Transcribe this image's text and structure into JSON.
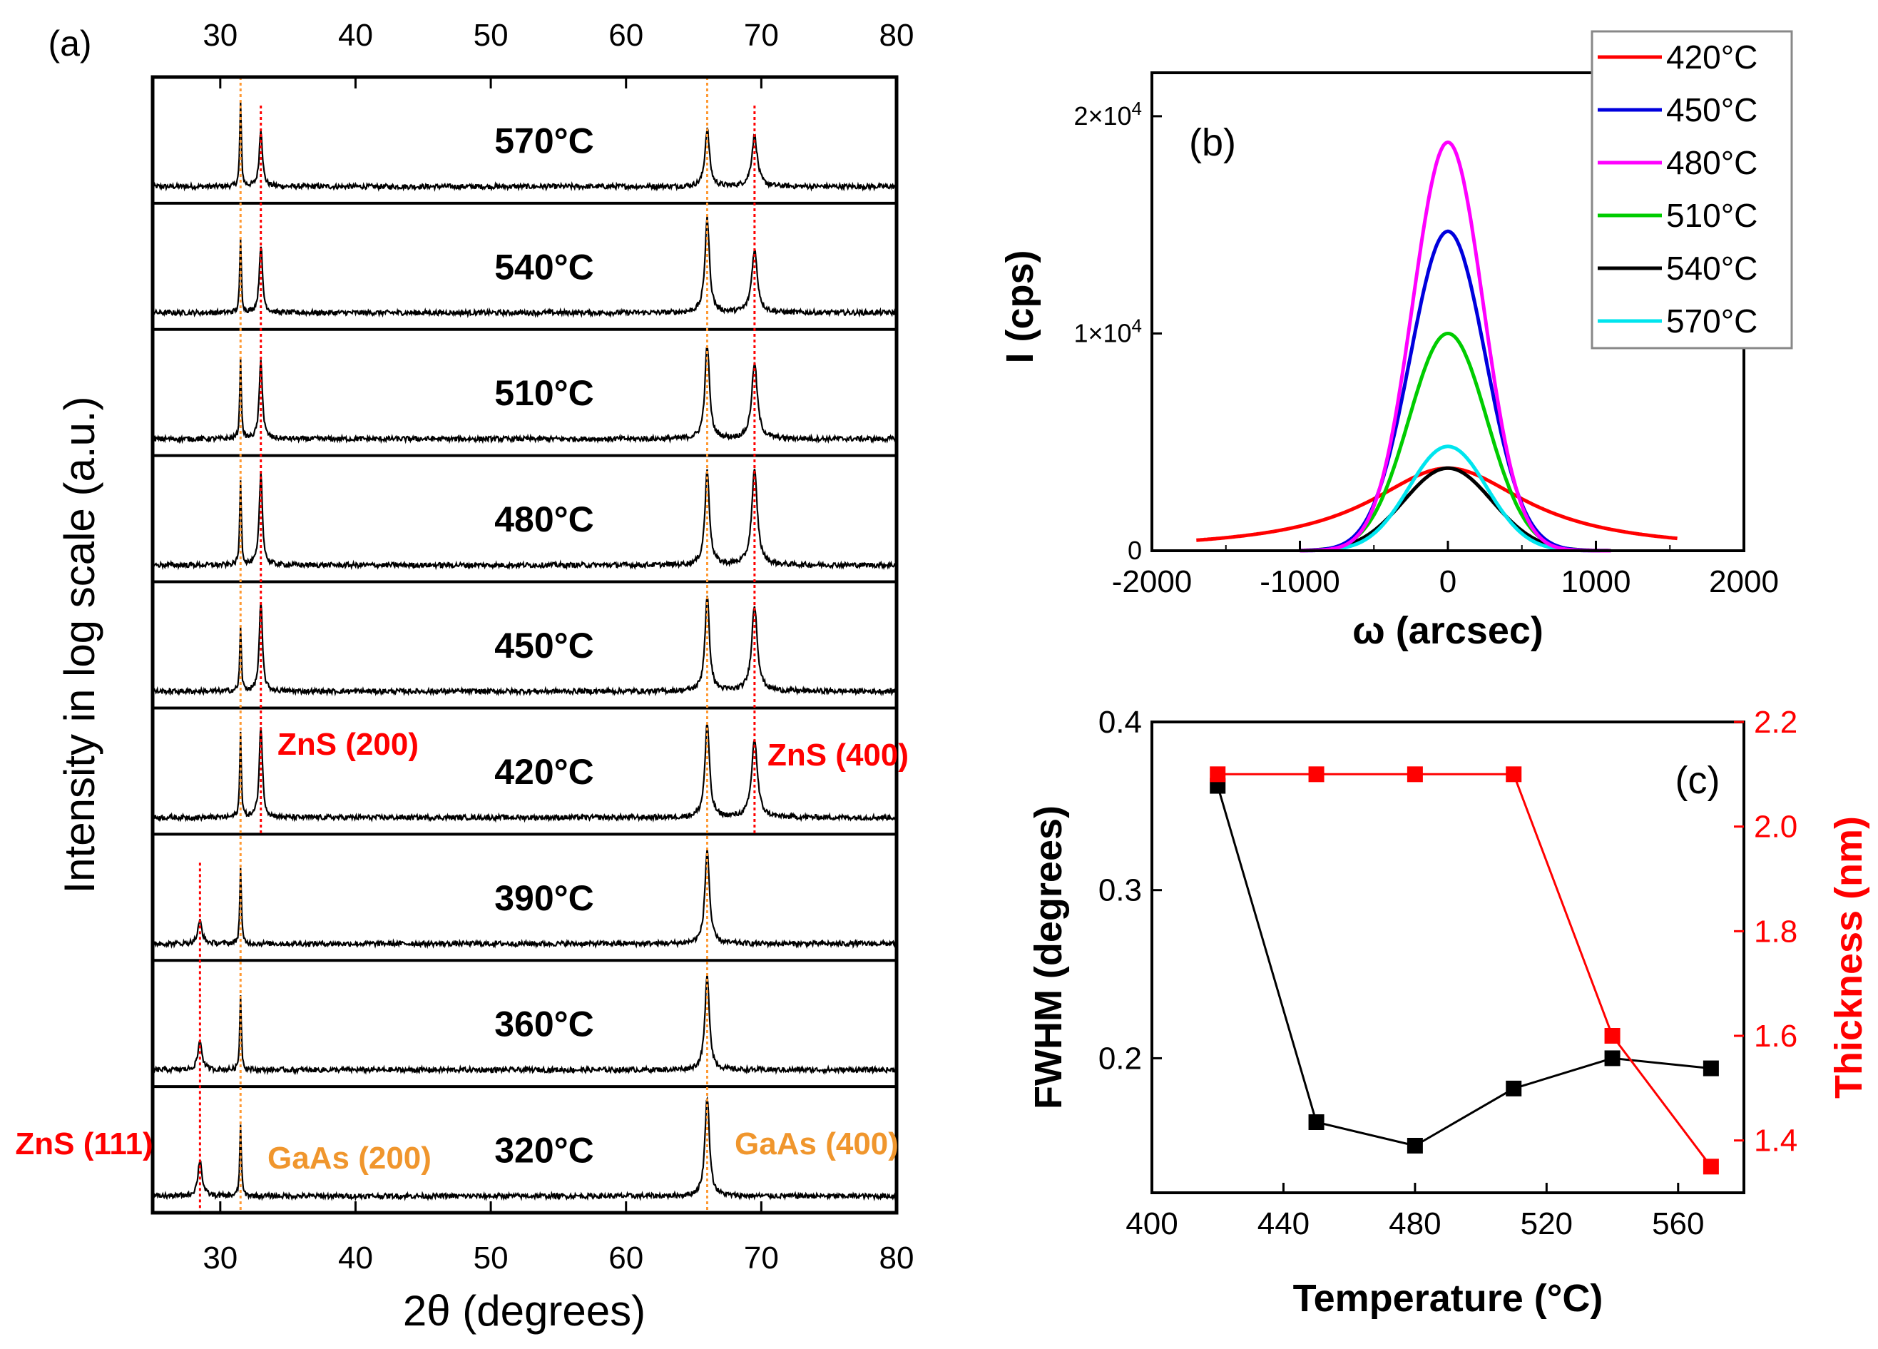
{
  "chart_data": [
    {
      "panel": "a",
      "type": "line",
      "panel_label": "(a)",
      "xlabel": "2θ (degrees)",
      "ylabel": "Intensity in log scale (a.u.)",
      "xlim": [
        25,
        80
      ],
      "xticks": [
        30,
        40,
        50,
        60,
        70,
        80
      ],
      "substrate_peaks": [
        {
          "label": "GaAs (200)",
          "x": 31.5
        },
        {
          "label": "GaAs (400)",
          "x": 66.0
        }
      ],
      "film_peak_labels": [
        {
          "label": "ZnS (111)",
          "x": 28.5
        },
        {
          "label": "ZnS (200)",
          "x": 33.0
        },
        {
          "label": "ZnS (400)",
          "x": 69.5
        }
      ],
      "series": [
        {
          "name": "570°C",
          "peaks": [
            {
              "x": 31.5,
              "h": 0.8
            },
            {
              "x": 33.0,
              "h": 0.55
            },
            {
              "x": 66.0,
              "h": 0.55
            },
            {
              "x": 69.5,
              "h": 0.48
            }
          ]
        },
        {
          "name": "540°C",
          "peaks": [
            {
              "x": 31.5,
              "h": 0.7
            },
            {
              "x": 33.0,
              "h": 0.65
            },
            {
              "x": 66.0,
              "h": 0.9
            },
            {
              "x": 69.5,
              "h": 0.6
            }
          ]
        },
        {
          "name": "510°C",
          "peaks": [
            {
              "x": 31.5,
              "h": 0.75
            },
            {
              "x": 33.0,
              "h": 0.75
            },
            {
              "x": 66.0,
              "h": 0.9
            },
            {
              "x": 69.5,
              "h": 0.72
            }
          ]
        },
        {
          "name": "480°C",
          "peaks": [
            {
              "x": 31.5,
              "h": 0.82
            },
            {
              "x": 33.0,
              "h": 0.88
            },
            {
              "x": 66.0,
              "h": 0.9
            },
            {
              "x": 69.5,
              "h": 0.9
            }
          ]
        },
        {
          "name": "450°C",
          "peaks": [
            {
              "x": 31.5,
              "h": 0.6
            },
            {
              "x": 33.0,
              "h": 0.85
            },
            {
              "x": 66.0,
              "h": 0.9
            },
            {
              "x": 69.5,
              "h": 0.82
            }
          ]
        },
        {
          "name": "420°C",
          "peaks": [
            {
              "x": 31.5,
              "h": 0.8
            },
            {
              "x": 33.0,
              "h": 0.88
            },
            {
              "x": 66.0,
              "h": 0.9
            },
            {
              "x": 69.5,
              "h": 0.75
            }
          ]
        },
        {
          "name": "390°C",
          "peaks": [
            {
              "x": 28.5,
              "h": 0.22
            },
            {
              "x": 31.5,
              "h": 0.72
            },
            {
              "x": 66.0,
              "h": 0.9
            }
          ]
        },
        {
          "name": "360°C",
          "peaks": [
            {
              "x": 28.5,
              "h": 0.28
            },
            {
              "x": 31.5,
              "h": 0.72
            },
            {
              "x": 66.0,
              "h": 0.9
            }
          ]
        },
        {
          "name": "320°C",
          "peaks": [
            {
              "x": 28.5,
              "h": 0.35
            },
            {
              "x": 31.5,
              "h": 0.68
            },
            {
              "x": 66.0,
              "h": 0.95
            }
          ]
        }
      ]
    },
    {
      "panel": "b",
      "type": "line",
      "panel_label": "(b)",
      "xlabel": "ω (arcsec)",
      "ylabel": "I (cps)",
      "xlim": [
        -2000,
        2000
      ],
      "ylim": [
        0,
        22000
      ],
      "xticks": [
        -2000,
        -1000,
        0,
        1000,
        2000
      ],
      "yticks": [
        {
          "value": 0,
          "base": "0",
          "exp": ""
        },
        {
          "value": 10000,
          "base": "1×10",
          "exp": "4"
        },
        {
          "value": 20000,
          "base": "2×10",
          "exp": "4"
        }
      ],
      "legend": "top-right",
      "series": [
        {
          "name": "420°C",
          "color": "#ff0000",
          "peak": 3800,
          "fwhm": 1300,
          "shape": "lorentz"
        },
        {
          "name": "450°C",
          "color": "#0000dd",
          "peak": 14700,
          "fwhm": 600,
          "shape": "gauss"
        },
        {
          "name": "480°C",
          "color": "#ff00ff",
          "peak": 18800,
          "fwhm": 560,
          "shape": "gauss"
        },
        {
          "name": "510°C",
          "color": "#00cc00",
          "peak": 10000,
          "fwhm": 620,
          "shape": "gauss"
        },
        {
          "name": "540°C",
          "color": "#000000",
          "peak": 3800,
          "fwhm": 700,
          "shape": "gauss"
        },
        {
          "name": "570°C",
          "color": "#00e5ee",
          "peak": 4800,
          "fwhm": 620,
          "shape": "gauss"
        }
      ]
    },
    {
      "panel": "c",
      "type": "line",
      "panel_label": "(c)",
      "xlabel": "Temperature (°C)",
      "ylabel": "FWHM (degrees)",
      "y2label": "Thickness (nm)",
      "xlim": [
        400,
        580
      ],
      "ylim": [
        0.12,
        0.4
      ],
      "y2lim": [
        1.3,
        2.2
      ],
      "xticks": [
        400,
        440,
        480,
        520,
        560
      ],
      "yticks": [
        "0.2",
        "0.3",
        "0.4"
      ],
      "y2ticks": [
        "1.4",
        "1.6",
        "1.8",
        "2.0",
        "2.2"
      ],
      "series": [
        {
          "name": "FWHM",
          "axis": "left",
          "color": "#000000",
          "x": [
            420,
            450,
            480,
            510,
            540,
            570
          ],
          "y": [
            0.362,
            0.162,
            0.148,
            0.182,
            0.2,
            0.194
          ]
        },
        {
          "name": "Thickness",
          "axis": "right",
          "color": "#ff0000",
          "x": [
            420,
            450,
            480,
            510,
            540,
            570
          ],
          "y": [
            2.1,
            2.1,
            2.1,
            2.1,
            1.6,
            1.35
          ]
        }
      ]
    }
  ]
}
